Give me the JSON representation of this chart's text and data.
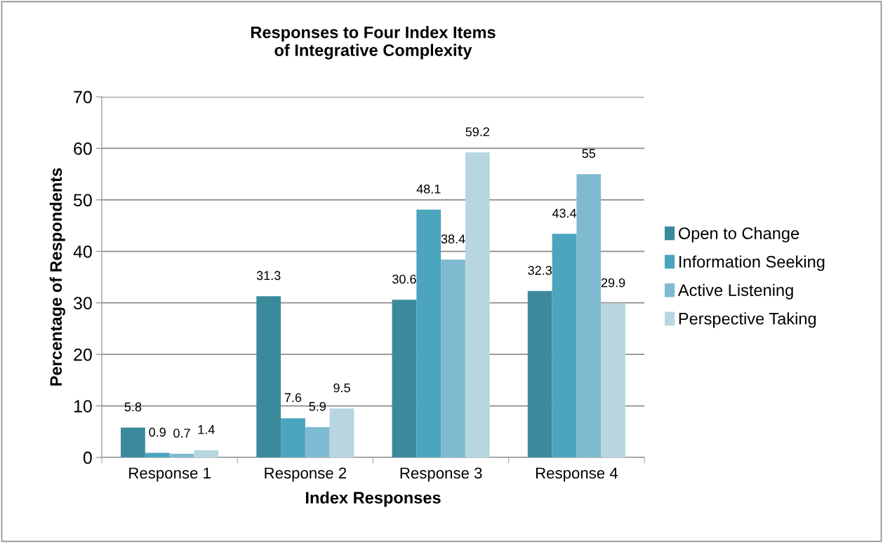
{
  "chart_data": {
    "type": "bar",
    "title": "Responses to Four Index Items\nof Integrative Complexity",
    "xlabel": "Index Responses",
    "ylabel": "Percentage of Respondents",
    "categories": [
      "Response 1",
      "Response 2",
      "Response 3",
      "Response 4"
    ],
    "series": [
      {
        "name": "Open to Change",
        "color": "#3a8a9c",
        "values": [
          5.8,
          31.3,
          30.6,
          32.3
        ]
      },
      {
        "name": "Information Seeking",
        "color": "#4aa5bd",
        "values": [
          0.9,
          7.6,
          48.1,
          43.4
        ]
      },
      {
        "name": "Active Listening",
        "color": "#7fbbd0",
        "values": [
          0.7,
          5.9,
          38.4,
          55
        ]
      },
      {
        "name": "Perspective Taking",
        "color": "#b7d6e0",
        "values": [
          1.4,
          9.5,
          59.2,
          29.9
        ]
      }
    ],
    "ylim": [
      0,
      70
    ],
    "yticks": [
      0,
      10,
      20,
      30,
      40,
      50,
      60,
      70
    ],
    "grid": "y",
    "legend": "right",
    "data_labels": true
  }
}
